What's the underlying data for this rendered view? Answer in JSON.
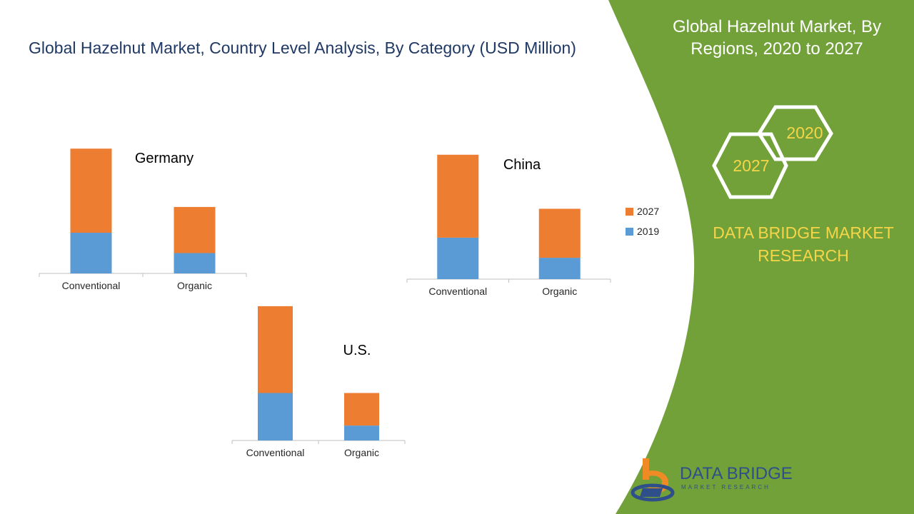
{
  "title": "Global Hazelnut Market, Country Level Analysis, By Category (USD Million)",
  "side_panel": {
    "title": "Global Hazelnut Market, By Regions, 2020 to 2027",
    "hex_years": [
      "2020",
      "2027"
    ],
    "brand_lines": [
      "DATA BRIDGE MARKET",
      "RESEARCH"
    ],
    "colors": {
      "panel": "#72a13a",
      "accent": "#f6d548",
      "text": "#ffffff"
    }
  },
  "logo": {
    "name": "DATA BRIDGE",
    "sub": "MARKET RESEARCH"
  },
  "legend": [
    {
      "name": "2027",
      "color": "#ed7d31"
    },
    {
      "name": "2019",
      "color": "#5b9bd5"
    }
  ],
  "chart_data": [
    {
      "type": "bar",
      "stacked": true,
      "title": "Germany",
      "categories": [
        "Conventional",
        "Organic"
      ],
      "series": [
        {
          "name": "2019",
          "color": "#5b9bd5",
          "values": [
            30,
            15
          ]
        },
        {
          "name": "2027",
          "color": "#ed7d31",
          "values": [
            62,
            34
          ]
        }
      ],
      "ylim": [
        0,
        100
      ]
    },
    {
      "type": "bar",
      "stacked": true,
      "title": "China",
      "categories": [
        "Conventional",
        "Organic"
      ],
      "series": [
        {
          "name": "2019",
          "color": "#5b9bd5",
          "values": [
            33,
            17
          ]
        },
        {
          "name": "2027",
          "color": "#ed7d31",
          "values": [
            66,
            39
          ]
        }
      ],
      "ylim": [
        0,
        100
      ]
    },
    {
      "type": "bar",
      "stacked": true,
      "title": "U.S.",
      "categories": [
        "Conventional",
        "Organic"
      ],
      "series": [
        {
          "name": "2019",
          "color": "#5b9bd5",
          "values": [
            35,
            11
          ]
        },
        {
          "name": "2027",
          "color": "#ed7d31",
          "values": [
            64,
            24
          ]
        }
      ],
      "ylim": [
        0,
        100
      ]
    }
  ]
}
